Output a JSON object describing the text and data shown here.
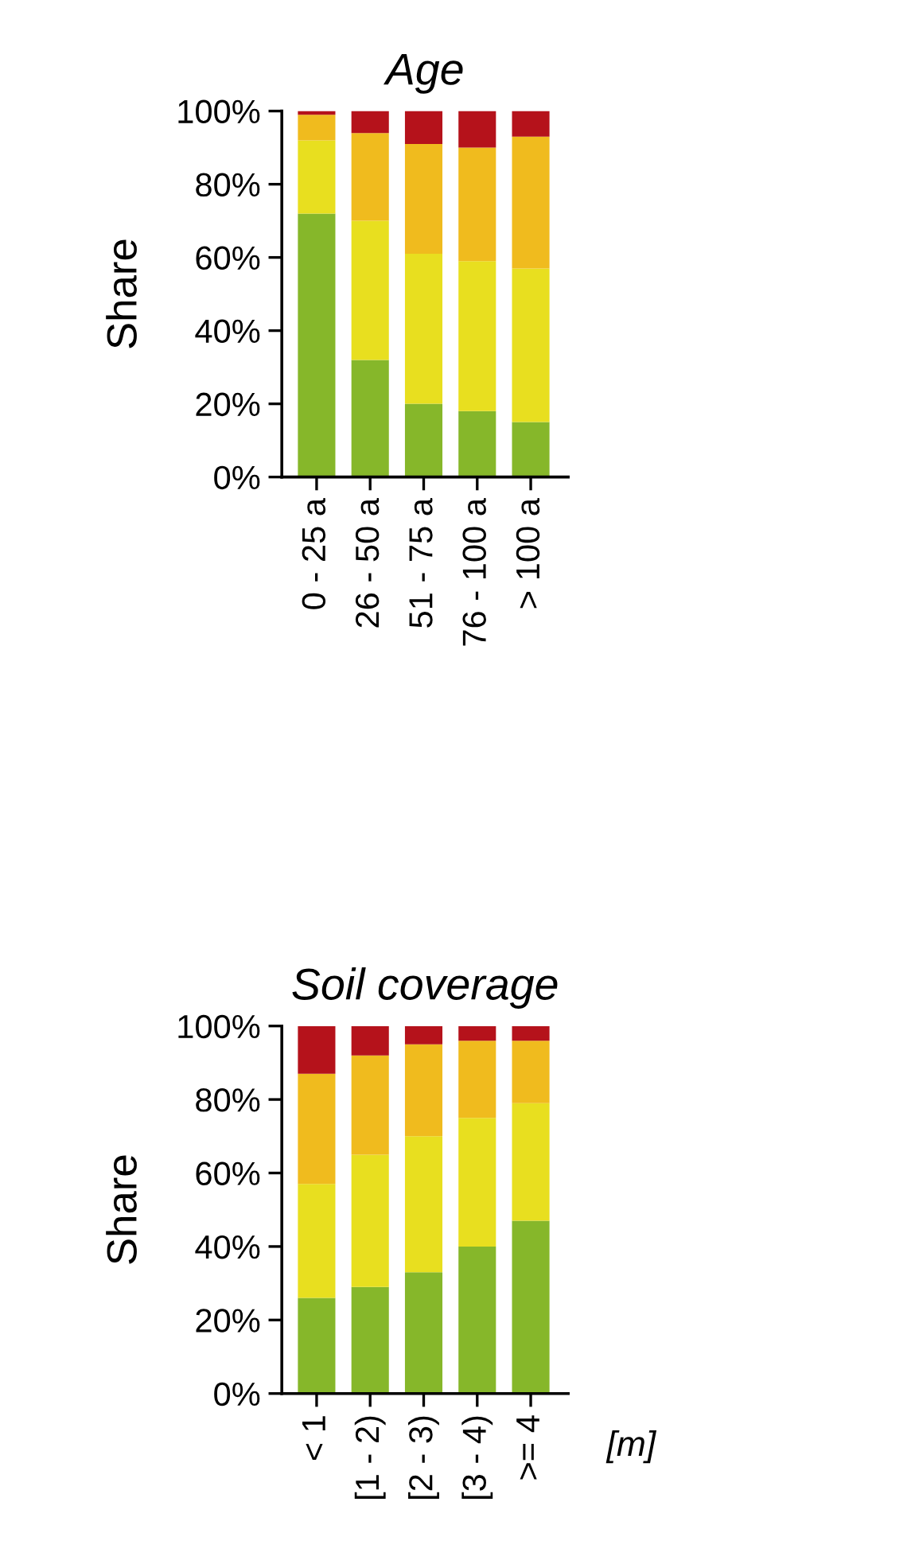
{
  "chart_data": [
    {
      "type": "bar",
      "title": "Age",
      "ylabel": "Share",
      "stacked": true,
      "grid": false,
      "legend": false,
      "categories": [
        "0 - 25 a",
        "26 - 50 a",
        "51 - 75 a",
        "76 - 100 a",
        "> 100 a"
      ],
      "ylim": [
        0,
        100
      ],
      "yticks": [
        {
          "value": 0,
          "label": "0%"
        },
        {
          "value": 20,
          "label": "20%"
        },
        {
          "value": 40,
          "label": "40%"
        },
        {
          "value": 60,
          "label": "60%"
        },
        {
          "value": 80,
          "label": "80%"
        },
        {
          "value": 100,
          "label": "100%"
        }
      ],
      "series": [
        {
          "color": "#86b72a",
          "values": [
            72,
            32,
            20,
            18,
            15
          ]
        },
        {
          "color": "#e8df1f",
          "values": [
            20,
            38,
            41,
            41,
            42
          ]
        },
        {
          "color": "#f0bb1e",
          "values": [
            7,
            24,
            30,
            31,
            36
          ]
        },
        {
          "color": "#b5121b",
          "values": [
            1,
            6,
            9,
            10,
            7
          ]
        }
      ]
    },
    {
      "type": "bar",
      "title": "Soil coverage",
      "ylabel": "Share",
      "xlabel": "[m]",
      "stacked": true,
      "grid": false,
      "legend": false,
      "categories": [
        "< 1",
        "[1 - 2)",
        "[2 - 3)",
        "[3 - 4)",
        ">= 4"
      ],
      "ylim": [
        0,
        100
      ],
      "yticks": [
        {
          "value": 0,
          "label": "0%"
        },
        {
          "value": 20,
          "label": "20%"
        },
        {
          "value": 40,
          "label": "40%"
        },
        {
          "value": 60,
          "label": "60%"
        },
        {
          "value": 80,
          "label": "80%"
        },
        {
          "value": 100,
          "label": "100%"
        }
      ],
      "series": [
        {
          "color": "#86b72a",
          "values": [
            26,
            29,
            33,
            40,
            47
          ]
        },
        {
          "color": "#e8df1f",
          "values": [
            31,
            36,
            37,
            35,
            32
          ]
        },
        {
          "color": "#f0bb1e",
          "values": [
            30,
            27,
            25,
            21,
            17
          ]
        },
        {
          "color": "#b5121b",
          "values": [
            13,
            8,
            5,
            4,
            4
          ]
        }
      ]
    }
  ]
}
